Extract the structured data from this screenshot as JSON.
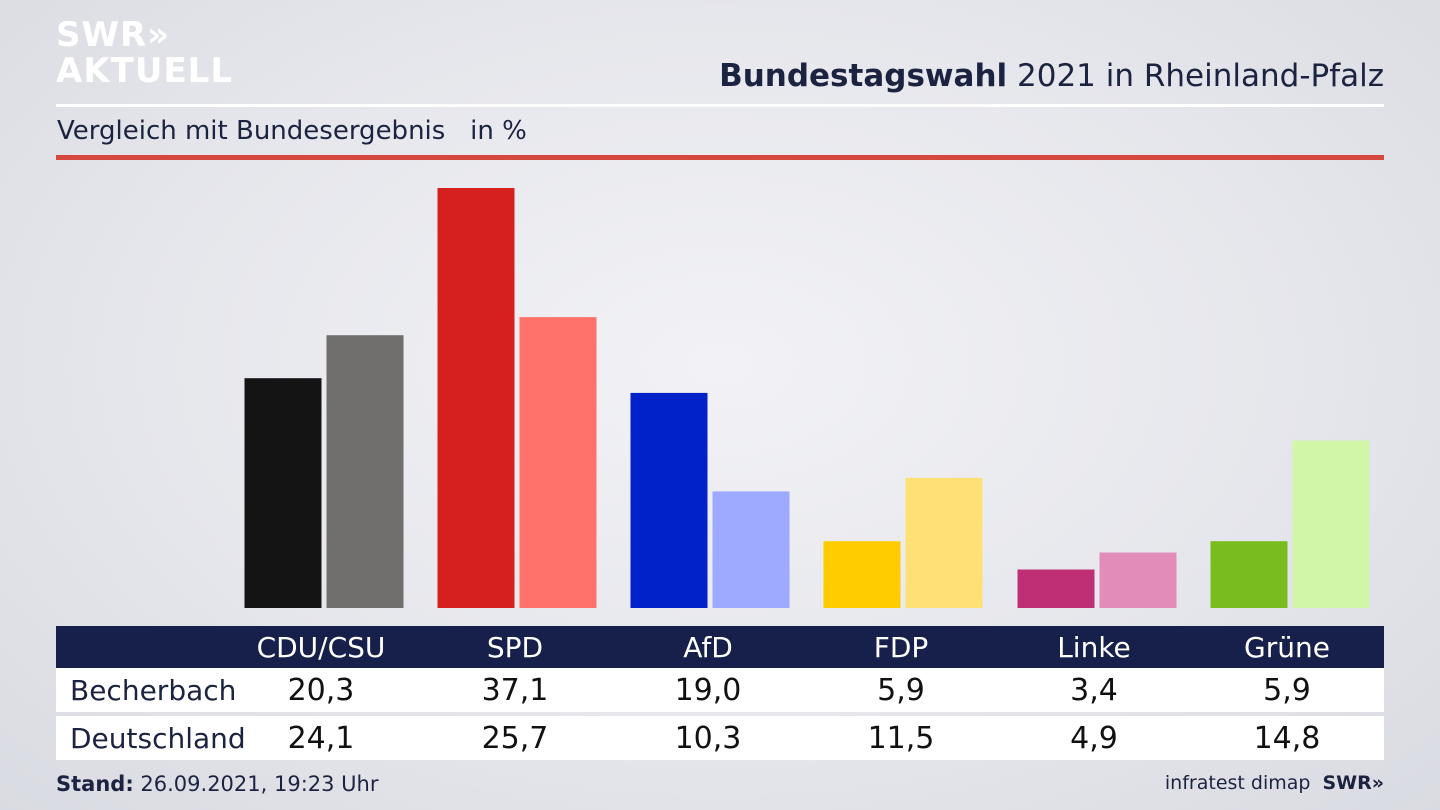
{
  "brand": {
    "logo_line1": "SWR",
    "logo_chevrons": "»",
    "logo_line2": "AKTUELL"
  },
  "header": {
    "title_bold": "Bundestagswahl",
    "title_rest": " 2021 in Rheinland-Pfalz",
    "subtitle": "Vergleich mit Bundesergebnis   in %"
  },
  "colors": {
    "header_bg": "#17204a",
    "accent_rule": "#d4483f"
  },
  "chart_data": {
    "type": "bar",
    "categories": [
      "CDU/CSU",
      "SPD",
      "AfD",
      "FDP",
      "Linke",
      "Grüne"
    ],
    "series": [
      {
        "name": "Becherbach",
        "values": [
          20.3,
          37.1,
          19.0,
          5.9,
          3.4,
          5.9
        ],
        "colors": [
          "#141414",
          "#d6201e",
          "#0022c8",
          "#ffcc00",
          "#be2f76",
          "#79bc1e"
        ]
      },
      {
        "name": "Deutschland",
        "values": [
          24.1,
          25.7,
          10.3,
          11.5,
          4.9,
          14.8
        ],
        "colors": [
          "#706f6d",
          "#ff726b",
          "#9daaff",
          "#ffe074",
          "#e28cba",
          "#d1f6a8"
        ]
      }
    ],
    "ylim": [
      0,
      37.1
    ]
  },
  "table": {
    "headers": [
      "CDU/CSU",
      "SPD",
      "AfD",
      "FDP",
      "Linke",
      "Grüne"
    ],
    "rows": [
      {
        "label": "Becherbach",
        "values": [
          "20,3",
          "37,1",
          "19,0",
          "5,9",
          "3,4",
          "5,9"
        ]
      },
      {
        "label": "Deutschland",
        "values": [
          "24,1",
          "25,7",
          "10,3",
          "11,5",
          "4,9",
          "14,8"
        ]
      }
    ]
  },
  "footer": {
    "stand_label": "Stand:",
    "stand_value": " 26.09.2021, 19:23 Uhr",
    "source": "infratest dimap",
    "brand_small": "SWR»"
  }
}
